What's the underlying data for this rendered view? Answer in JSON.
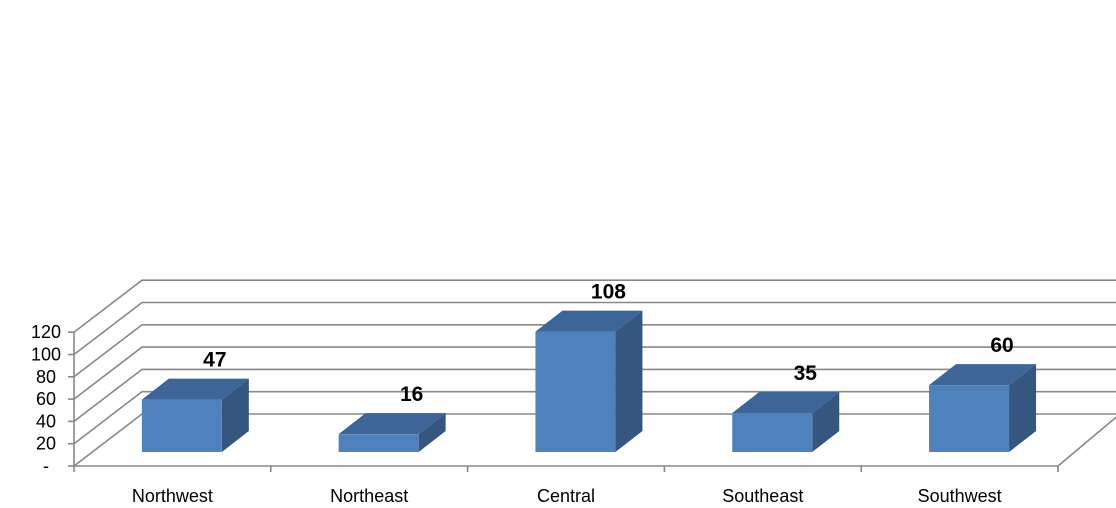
{
  "chart_data": {
    "type": "bar",
    "style": "3d-column",
    "categories": [
      "Northwest",
      "Northeast",
      "Central",
      "Southeast",
      "Southwest"
    ],
    "values": [
      47,
      16,
      108,
      35,
      60
    ],
    "data_labels": [
      "47",
      "16",
      "108",
      "35",
      "60"
    ],
    "title": "",
    "xlabel": "",
    "ylabel": "",
    "ylim": [
      0,
      120
    ],
    "yticks": [
      0,
      20,
      40,
      60,
      80,
      100,
      120
    ],
    "ytick_labels": [
      "-",
      "20",
      "40",
      "60",
      "80",
      "100",
      "120"
    ],
    "grid": true,
    "legend": "none",
    "colors": {
      "bar_front": "#4f81bd",
      "bar_side": "#34567f",
      "bar_top": "#3d6597",
      "grid": "#888888"
    }
  }
}
